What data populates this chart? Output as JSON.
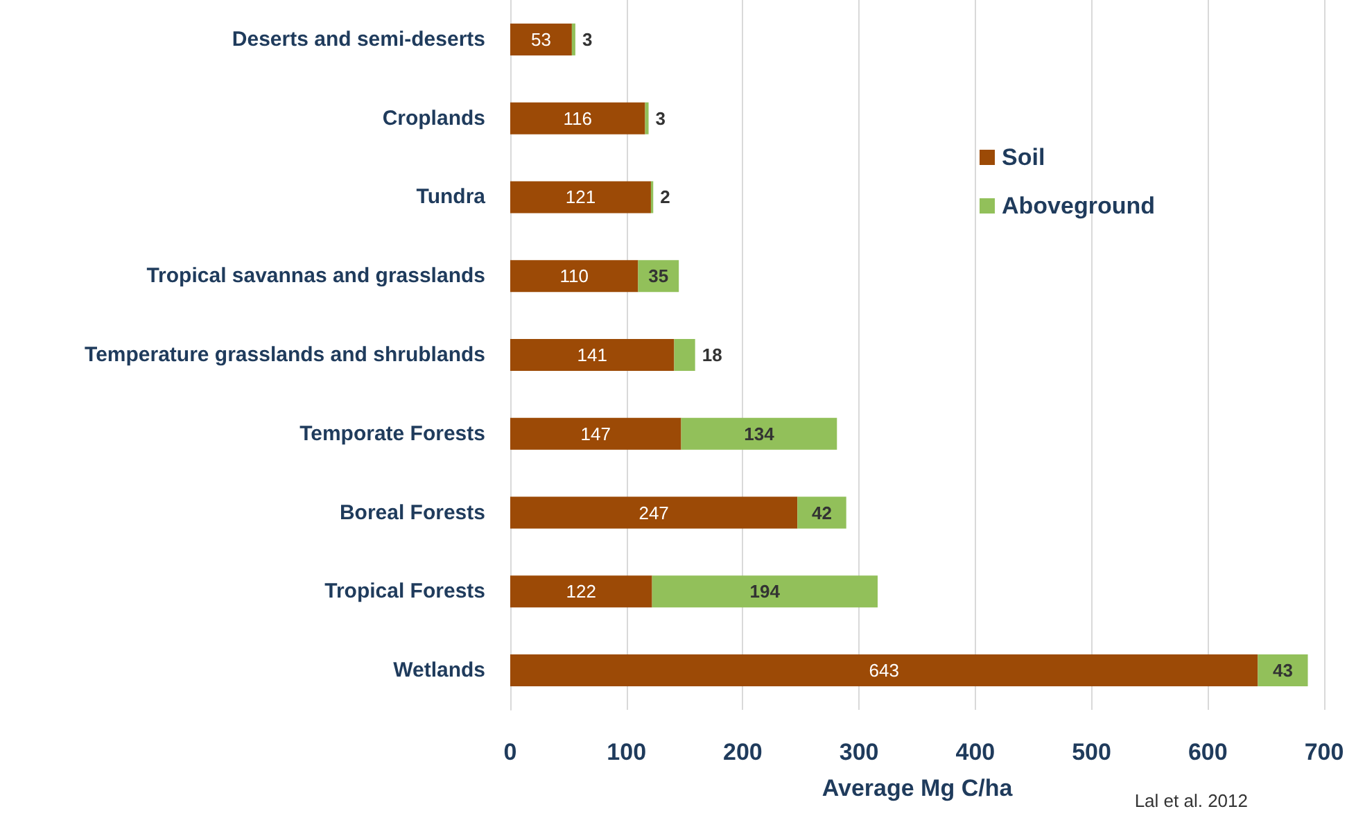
{
  "chart_data": {
    "type": "bar",
    "orientation": "horizontal",
    "stacked": true,
    "categories": [
      "Deserts and semi-deserts",
      "Croplands",
      "Tundra",
      "Tropical savannas and grasslands",
      "Temperature grasslands and shrublands",
      "Temporate Forests",
      "Boreal Forests",
      "Tropical Forests",
      "Wetlands"
    ],
    "series": [
      {
        "name": "Soil",
        "color": "#9c4a06",
        "values": [
          53,
          116,
          121,
          110,
          141,
          147,
          247,
          122,
          643
        ]
      },
      {
        "name": "Aboveground",
        "color": "#92c05a",
        "values": [
          3,
          3,
          2,
          35,
          18,
          134,
          42,
          194,
          43
        ]
      }
    ],
    "xlabel": "Average Mg C/ha",
    "xlim": [
      0,
      700
    ],
    "xticks": [
      0,
      100,
      200,
      300,
      400,
      500,
      600,
      700
    ],
    "grid": "x",
    "legend": "top right",
    "data_labels": true,
    "annotations": [
      "Lal et al. 2012"
    ]
  }
}
